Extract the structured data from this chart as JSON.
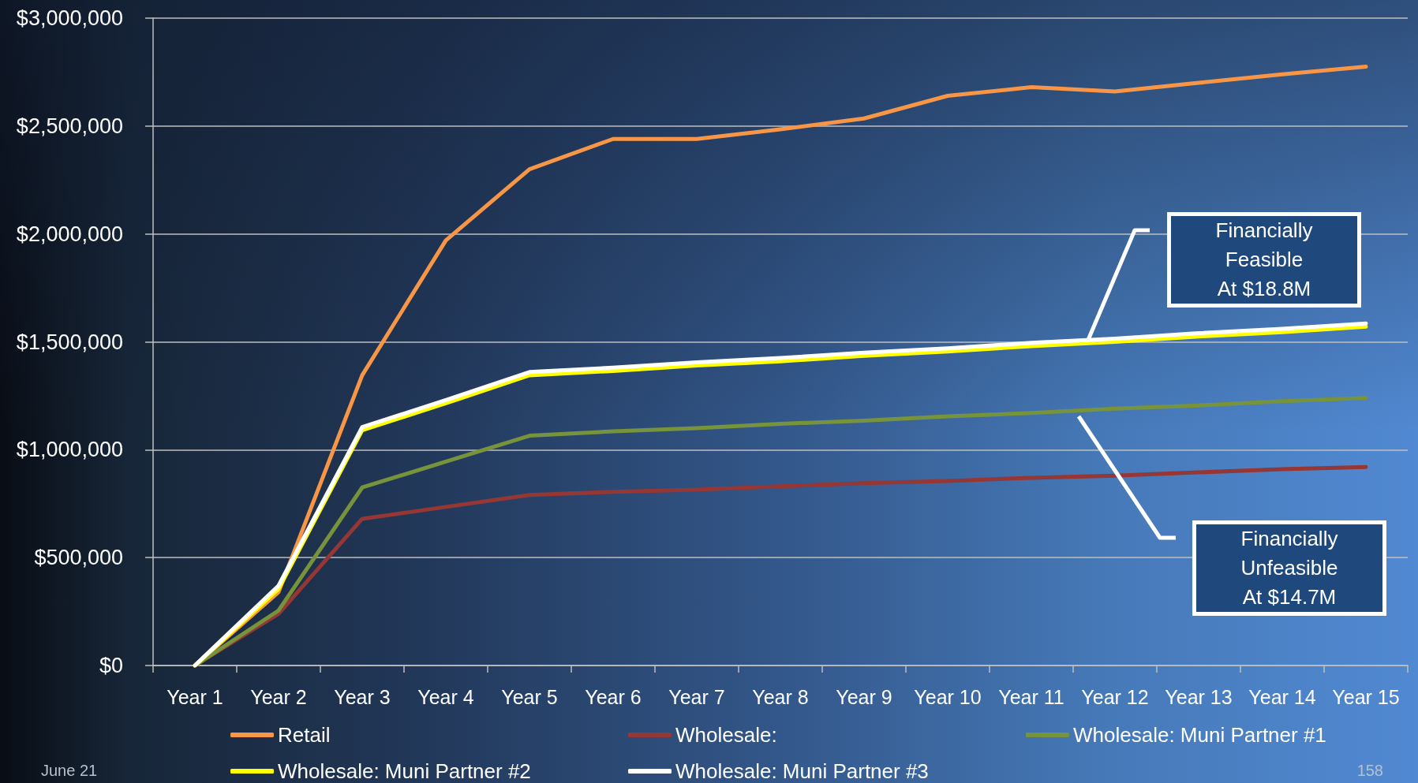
{
  "chart_data": {
    "type": "line",
    "categories": [
      "Year 1",
      "Year 2",
      "Year 3",
      "Year 4",
      "Year 5",
      "Year 6",
      "Year 7",
      "Year 8",
      "Year 9",
      "Year 10",
      "Year 11",
      "Year 12",
      "Year 13",
      "Year 14",
      "Year 15"
    ],
    "series": [
      {
        "name": "Retail",
        "color": "#f79646",
        "values": [
          0,
          340000,
          1345000,
          1970000,
          2300000,
          2440000,
          2440000,
          2485000,
          2535000,
          2640000,
          2680000,
          2660000,
          2700000,
          2740000,
          2775000
        ]
      },
      {
        "name": "Wholesale:",
        "color": "#953735",
        "values": [
          0,
          240000,
          680000,
          735000,
          790000,
          805000,
          815000,
          830000,
          845000,
          855000,
          870000,
          880000,
          895000,
          910000,
          920000
        ]
      },
      {
        "name": "Wholesale: Muni Partner #1",
        "color": "#77933c",
        "values": [
          0,
          255000,
          825000,
          945000,
          1065000,
          1085000,
          1100000,
          1120000,
          1135000,
          1155000,
          1170000,
          1190000,
          1205000,
          1225000,
          1240000
        ]
      },
      {
        "name": "Wholesale: Muni Partner #2",
        "color": "#ffff00",
        "values": [
          0,
          355000,
          1090000,
          1215000,
          1345000,
          1365000,
          1390000,
          1410000,
          1435000,
          1455000,
          1480000,
          1500000,
          1525000,
          1545000,
          1570000
        ]
      },
      {
        "name": "Wholesale: Muni Partner #3",
        "color": "#ffffff",
        "values": [
          0,
          370000,
          1105000,
          1230000,
          1360000,
          1380000,
          1405000,
          1425000,
          1450000,
          1470000,
          1495000,
          1515000,
          1540000,
          1560000,
          1585000
        ]
      }
    ],
    "ylim": [
      0,
      3000000
    ],
    "yticks": [
      {
        "value": 0,
        "label": "$0"
      },
      {
        "value": 500000,
        "label": "$500,000"
      },
      {
        "value": 1000000,
        "label": "$1,000,000"
      },
      {
        "value": 1500000,
        "label": "$1,500,000"
      },
      {
        "value": 2000000,
        "label": "$2,000,000"
      },
      {
        "value": 2500000,
        "label": "$2,500,000"
      },
      {
        "value": 3000000,
        "label": "$3,000,000"
      }
    ],
    "grid": "y",
    "legend": "bottom",
    "marker": "none",
    "line_style": "solid",
    "annotations": [
      "Financially\nFeasible\nAt $18.8M",
      "Financially\nUnfeasible\nAt $14.7M",
      "June 21",
      "158"
    ]
  }
}
